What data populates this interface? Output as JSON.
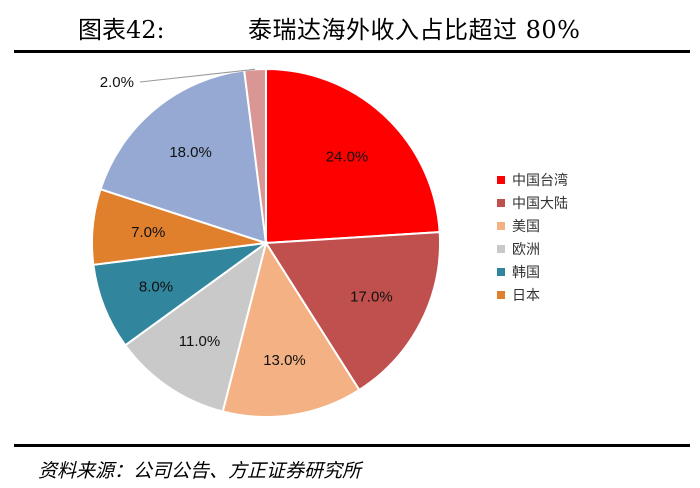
{
  "figure": {
    "number": "图表42:",
    "title": "泰瑞达海外收入占比超过 80%",
    "source": "资料来源：公司公告、方正证券研究所"
  },
  "chart_data": {
    "type": "pie",
    "title": "泰瑞达海外收入占比超过 80%",
    "legend_position": "right",
    "slices": [
      {
        "name": "中国台湾",
        "value": 24.0,
        "label": "24.0%",
        "color": "#ff0000"
      },
      {
        "name": "中国大陆",
        "value": 17.0,
        "label": "17.0%",
        "color": "#c0504d"
      },
      {
        "name": "美国",
        "value": 13.0,
        "label": "13.0%",
        "color": "#f4b183"
      },
      {
        "name": "欧洲",
        "value": 11.0,
        "label": "11.0%",
        "color": "#c9c9c9"
      },
      {
        "name": "韩国",
        "value": 8.0,
        "label": "8.0%",
        "color": "#31859c"
      },
      {
        "name": "日本",
        "value": 7.0,
        "label": "7.0%",
        "color": "#e07f2c"
      },
      {
        "name": "",
        "value": 18.0,
        "label": "18.0%",
        "color": "#95a9d3"
      },
      {
        "name": "",
        "value": 2.0,
        "label": "2.0%",
        "color": "#d99694"
      }
    ]
  }
}
